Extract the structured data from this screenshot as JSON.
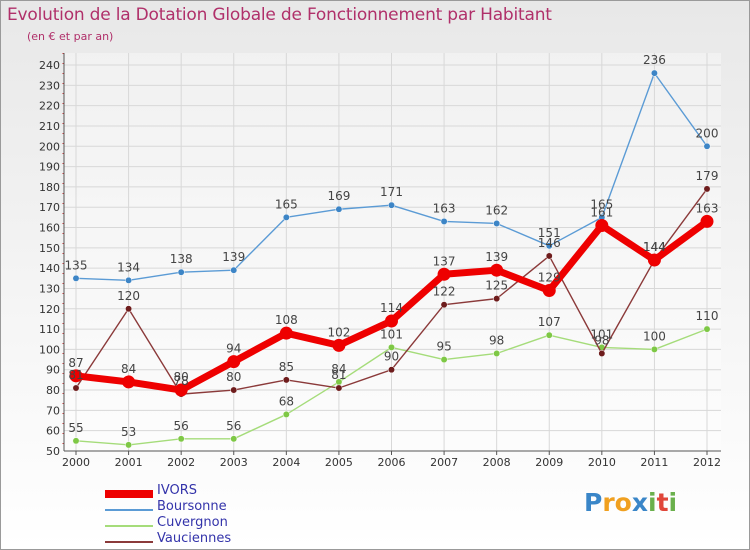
{
  "header": {
    "title": "Evolution de la Dotation Globale de Fonctionnement par Habitant",
    "subtitle": "(en € et par an)"
  },
  "logo": {
    "letters": [
      "P",
      "r",
      "o",
      "x",
      "i",
      "t",
      "i"
    ],
    "colors": [
      "#3a86c8",
      "#f0a020",
      "#f0a020",
      "#3a86c8",
      "#6ab04c",
      "#e0463a",
      "#6ab04c"
    ]
  },
  "chart_data": {
    "type": "line",
    "title": "Evolution de la Dotation Globale de Fonctionnement par Habitant",
    "subtitle": "(en € et par an)",
    "xlabel": "",
    "ylabel": "",
    "x": [
      "2000",
      "2001",
      "2002",
      "2003",
      "2004",
      "2005",
      "2006",
      "2007",
      "2008",
      "2009",
      "2010",
      "2011",
      "2012"
    ],
    "ylim": [
      50,
      240
    ],
    "yticks": [
      50,
      60,
      70,
      80,
      90,
      100,
      110,
      120,
      130,
      140,
      150,
      160,
      170,
      180,
      190,
      200,
      210,
      220,
      230,
      240
    ],
    "grid": true,
    "legend_position": "bottom-left",
    "series": [
      {
        "name": "Boursonne",
        "color": "#5b9bd5",
        "marker_color": "#3d85c6",
        "values": [
          135,
          134,
          138,
          139,
          165,
          169,
          171,
          163,
          162,
          151,
          165,
          236,
          200
        ],
        "labels": [
          "135",
          "134",
          "138",
          "139",
          "165",
          "169",
          "171",
          "163",
          "162",
          "151",
          "165",
          "236",
          "200"
        ]
      },
      {
        "name": "Cuvergnon",
        "color": "#a5dc7a",
        "marker_color": "#7ec845",
        "values": [
          55,
          53,
          56,
          56,
          68,
          84,
          101,
          95,
          98,
          107,
          101,
          100,
          110
        ],
        "labels": [
          "55",
          "53",
          "56",
          "56",
          "68",
          "84",
          "101",
          "95",
          "98",
          "107",
          "101",
          "100",
          "110"
        ]
      },
      {
        "name": "Vauciennes",
        "color": "#8b3a3a",
        "marker_color": "#6e1c1c",
        "values": [
          81,
          120,
          78,
          80,
          85,
          81,
          90,
          122,
          125,
          146,
          98,
          144,
          179
        ],
        "labels": [
          "81",
          "120",
          "78",
          "80",
          "85",
          "81",
          "90",
          "122",
          "125",
          "146",
          "98",
          "144",
          "179"
        ]
      },
      {
        "name": "IVORS",
        "color": "#ee0000",
        "marker_color": "#ee0000",
        "values": [
          87,
          84,
          80,
          94,
          108,
          102,
          114,
          137,
          139,
          129,
          161,
          144,
          163
        ],
        "labels": [
          "87",
          "84",
          "80",
          "94",
          "108",
          "102",
          "114",
          "137",
          "139",
          "129",
          "161",
          "144",
          "163"
        ]
      }
    ],
    "legend": [
      "IVORS",
      "Boursonne",
      "Cuvergnon",
      "Vauciennes"
    ]
  }
}
